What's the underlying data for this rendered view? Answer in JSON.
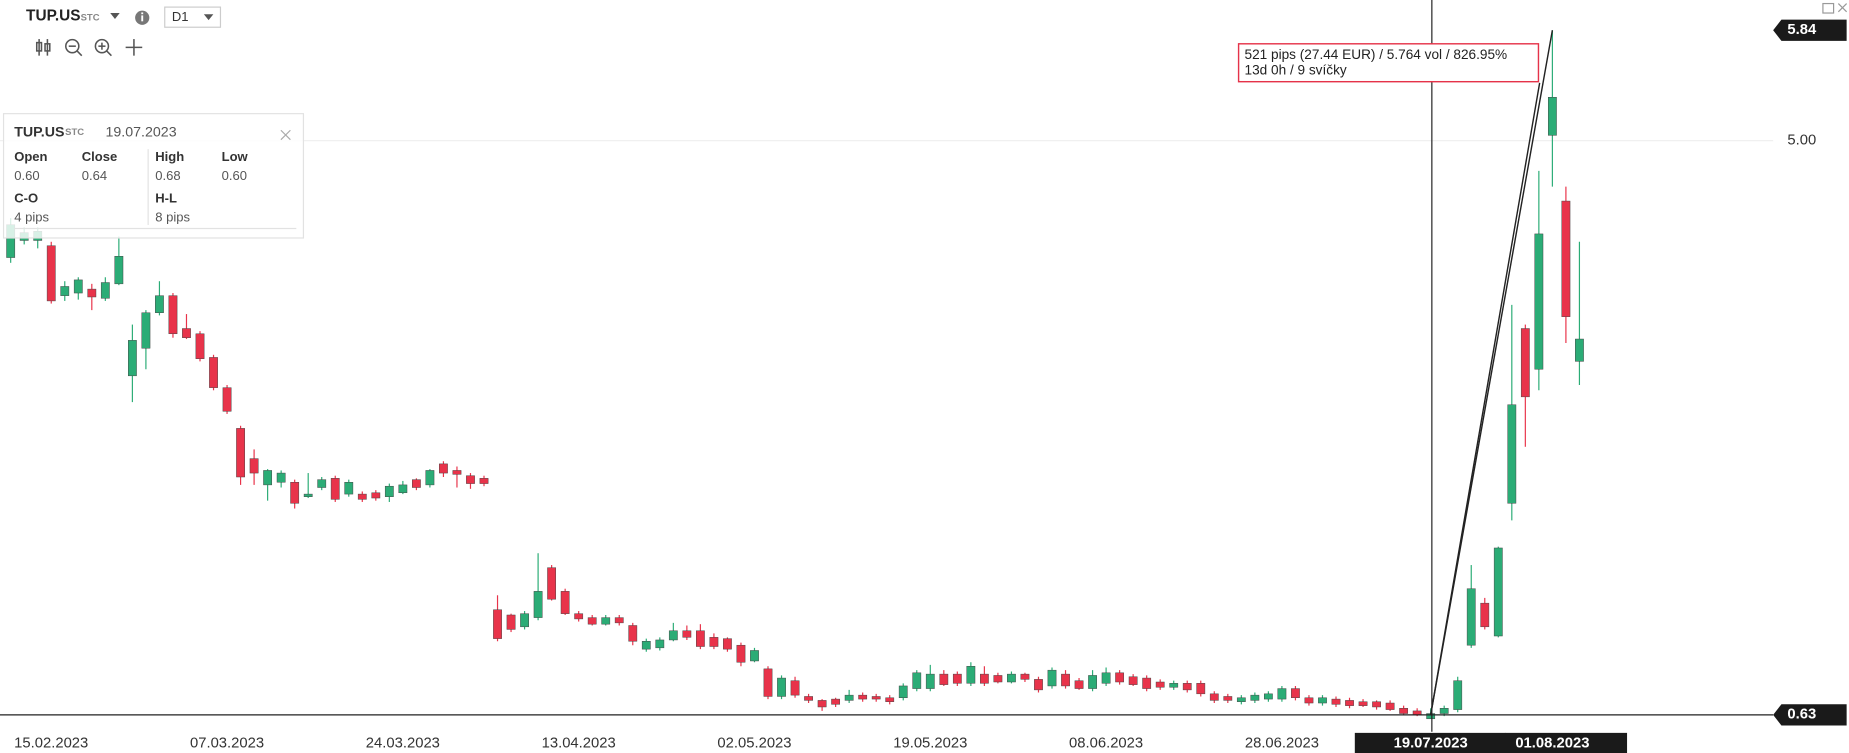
{
  "header": {
    "symbol": "TUP.US",
    "market": "STC",
    "timeframe": "D1"
  },
  "info_panel": {
    "symbol": "TUP.US",
    "market": "STC",
    "date": "19.07.2023",
    "fields": [
      {
        "label": "Open",
        "value": "0.60"
      },
      {
        "label": "Close",
        "value": "0.64"
      },
      {
        "label": "High",
        "value": "0.68"
      },
      {
        "label": "Low",
        "value": "0.60"
      },
      {
        "label": "C-O",
        "value": "4 pips"
      },
      {
        "label": "H-L",
        "value": "8 pips"
      }
    ]
  },
  "measurement": {
    "lines": [
      "521 pips (27.44 EUR) / 5.764 vol / 826.95%",
      "13d 0h / 9 svíčky"
    ],
    "from": "19.07.2023",
    "to": "01.08.2023"
  },
  "chart_data": {
    "type": "candlestick",
    "up_color": "#2bac76",
    "down_color": "#e8334a",
    "ylim": [
      0.61,
      6.07
    ],
    "yticks": [
      {
        "value": 5,
        "label": "5.00"
      }
    ],
    "price_labels": [
      {
        "value": 5.84,
        "label": "5.84"
      },
      {
        "value": 0.63,
        "label": "0.63"
      }
    ],
    "grid": true,
    "categories": [
      null,
      null,
      null,
      "15.02.2023",
      null,
      null,
      null,
      null,
      null,
      null,
      null,
      null,
      null,
      null,
      null,
      null,
      "07.03.2023",
      null,
      null,
      null,
      null,
      null,
      null,
      null,
      null,
      null,
      null,
      null,
      null,
      "24.03.2023",
      null,
      null,
      null,
      null,
      null,
      null,
      null,
      null,
      null,
      null,
      null,
      null,
      "13.04.2023",
      null,
      null,
      null,
      null,
      null,
      null,
      null,
      null,
      null,
      null,
      null,
      null,
      "02.05.2023",
      null,
      null,
      null,
      null,
      null,
      null,
      null,
      null,
      null,
      null,
      null,
      null,
      "19.05.2023",
      null,
      null,
      null,
      null,
      null,
      null,
      null,
      null,
      null,
      null,
      null,
      null,
      "08.06.2023",
      null,
      null,
      null,
      null,
      null,
      null,
      null,
      null,
      null,
      null,
      null,
      null,
      "28.06.2023",
      null,
      null,
      null,
      null,
      null,
      null,
      null,
      null,
      null,
      null,
      "19.07.2023",
      null,
      null,
      null,
      null,
      null,
      null,
      null,
      null,
      "01.08.2023",
      null,
      null
    ],
    "open": [
      4.11,
      4.24,
      4.24,
      4.2,
      3.82,
      3.84,
      3.87,
      3.8,
      3.91,
      3.21,
      3.42,
      3.69,
      3.82,
      3.57,
      3.53,
      3.35,
      3.12,
      2.81,
      2.58,
      2.38,
      2.4,
      2.4,
      2.29,
      2.36,
      2.43,
      2.31,
      2.31,
      2.32,
      2.29,
      2.32,
      2.42,
      2.38,
      2.54,
      2.49,
      2.45,
      2.43,
      1.43,
      1.39,
      1.3,
      1.37,
      1.75,
      1.57,
      1.4,
      1.37,
      1.32,
      1.37,
      1.31,
      1.13,
      1.14,
      1.2,
      1.27,
      1.27,
      1.22,
      1.21,
      1.16,
      1.04,
      0.98,
      0.77,
      0.89,
      0.77,
      0.74,
      0.75,
      0.74,
      0.78,
      0.77,
      0.76,
      0.76,
      0.83,
      0.83,
      0.94,
      0.94,
      0.87,
      0.94,
      0.93,
      0.88,
      0.94,
      0.9,
      0.85,
      0.94,
      0.89,
      0.83,
      0.87,
      0.95,
      0.92,
      0.91,
      0.88,
      0.84,
      0.87,
      0.87,
      0.79,
      0.77,
      0.73,
      0.74,
      0.75,
      0.75,
      0.83,
      0.76,
      0.72,
      0.75,
      0.74,
      0.73,
      0.73,
      0.72,
      0.68,
      0.66,
      0.6,
      0.64,
      0.67,
      1.16,
      1.48,
      1.23,
      2.24,
      3.57,
      3.26,
      5.04,
      4.54,
      3.32
    ],
    "high": [
      4.41,
      4.34,
      4.34,
      4.23,
      3.93,
      3.96,
      3.91,
      3.96,
      4.27,
      3.6,
      3.71,
      3.93,
      3.84,
      3.68,
      3.55,
      3.37,
      3.14,
      2.83,
      2.65,
      2.5,
      2.49,
      2.42,
      2.47,
      2.44,
      2.45,
      2.42,
      2.33,
      2.34,
      2.39,
      2.41,
      2.43,
      2.5,
      2.56,
      2.52,
      2.47,
      2.45,
      1.54,
      1.4,
      1.42,
      1.86,
      1.77,
      1.59,
      1.42,
      1.39,
      1.39,
      1.39,
      1.33,
      1.21,
      1.22,
      1.33,
      1.31,
      1.32,
      1.25,
      1.22,
      1.18,
      1.14,
      1.0,
      0.93,
      0.92,
      0.79,
      0.75,
      0.76,
      0.82,
      0.8,
      0.79,
      0.78,
      0.87,
      0.97,
      1.01,
      0.97,
      0.96,
      1.03,
      1.0,
      0.95,
      0.96,
      0.95,
      0.92,
      0.99,
      0.97,
      0.91,
      0.97,
      0.99,
      0.97,
      0.94,
      0.93,
      0.9,
      0.89,
      0.89,
      0.89,
      0.81,
      0.79,
      0.78,
      0.8,
      0.81,
      0.85,
      0.85,
      0.78,
      0.78,
      0.77,
      0.76,
      0.75,
      0.74,
      0.74,
      0.7,
      0.68,
      0.68,
      0.7,
      0.92,
      1.77,
      1.52,
      1.91,
      3.75,
      3.6,
      4.77,
      5.84,
      4.65,
      4.23
    ],
    "low": [
      4.07,
      4.21,
      4.18,
      3.76,
      3.78,
      3.79,
      3.71,
      3.78,
      3.9,
      3.01,
      3.26,
      3.67,
      3.5,
      3.49,
      3.32,
      3.1,
      2.92,
      2.38,
      2.38,
      2.26,
      2.36,
      2.2,
      2.28,
      2.34,
      2.25,
      2.29,
      2.25,
      2.26,
      2.25,
      2.31,
      2.34,
      2.36,
      2.44,
      2.36,
      2.35,
      2.37,
      1.19,
      1.26,
      1.28,
      1.35,
      1.5,
      1.39,
      1.34,
      1.31,
      1.31,
      1.31,
      1.16,
      1.11,
      1.12,
      1.19,
      1.2,
      1.13,
      1.13,
      1.11,
      1.0,
      1.03,
      0.75,
      0.75,
      0.76,
      0.72,
      0.66,
      0.69,
      0.72,
      0.73,
      0.73,
      0.71,
      0.74,
      0.81,
      0.81,
      0.85,
      0.85,
      0.85,
      0.85,
      0.87,
      0.87,
      0.88,
      0.8,
      0.83,
      0.83,
      0.82,
      0.81,
      0.85,
      0.86,
      0.85,
      0.81,
      0.82,
      0.82,
      0.8,
      0.77,
      0.72,
      0.72,
      0.71,
      0.72,
      0.73,
      0.73,
      0.74,
      0.7,
      0.7,
      0.69,
      0.68,
      0.69,
      0.67,
      0.66,
      0.63,
      0.62,
      0.6,
      0.62,
      0.65,
      1.14,
      1.28,
      1.22,
      2.11,
      2.67,
      3.1,
      4.65,
      3.46,
      3.14
    ],
    "close": [
      4.36,
      4.3,
      4.31,
      3.78,
      3.89,
      3.94,
      3.81,
      3.92,
      4.12,
      3.48,
      3.69,
      3.82,
      3.53,
      3.5,
      3.34,
      3.12,
      2.94,
      2.44,
      2.47,
      2.49,
      2.47,
      2.24,
      2.31,
      2.42,
      2.27,
      2.4,
      2.27,
      2.28,
      2.37,
      2.38,
      2.36,
      2.49,
      2.47,
      2.46,
      2.39,
      2.39,
      1.21,
      1.28,
      1.4,
      1.57,
      1.51,
      1.4,
      1.36,
      1.32,
      1.37,
      1.33,
      1.19,
      1.19,
      1.2,
      1.27,
      1.22,
      1.15,
      1.15,
      1.13,
      1.03,
      1.12,
      0.77,
      0.91,
      0.78,
      0.74,
      0.69,
      0.71,
      0.78,
      0.75,
      0.75,
      0.73,
      0.85,
      0.95,
      0.94,
      0.86,
      0.87,
      1.0,
      0.87,
      0.88,
      0.94,
      0.9,
      0.82,
      0.97,
      0.85,
      0.83,
      0.93,
      0.95,
      0.88,
      0.86,
      0.83,
      0.84,
      0.87,
      0.82,
      0.79,
      0.74,
      0.74,
      0.76,
      0.78,
      0.79,
      0.83,
      0.76,
      0.72,
      0.76,
      0.71,
      0.7,
      0.7,
      0.69,
      0.67,
      0.64,
      0.63,
      0.64,
      0.68,
      0.89,
      1.59,
      1.3,
      1.9,
      2.99,
      3.05,
      4.29,
      5.33,
      3.66,
      3.49
    ]
  }
}
